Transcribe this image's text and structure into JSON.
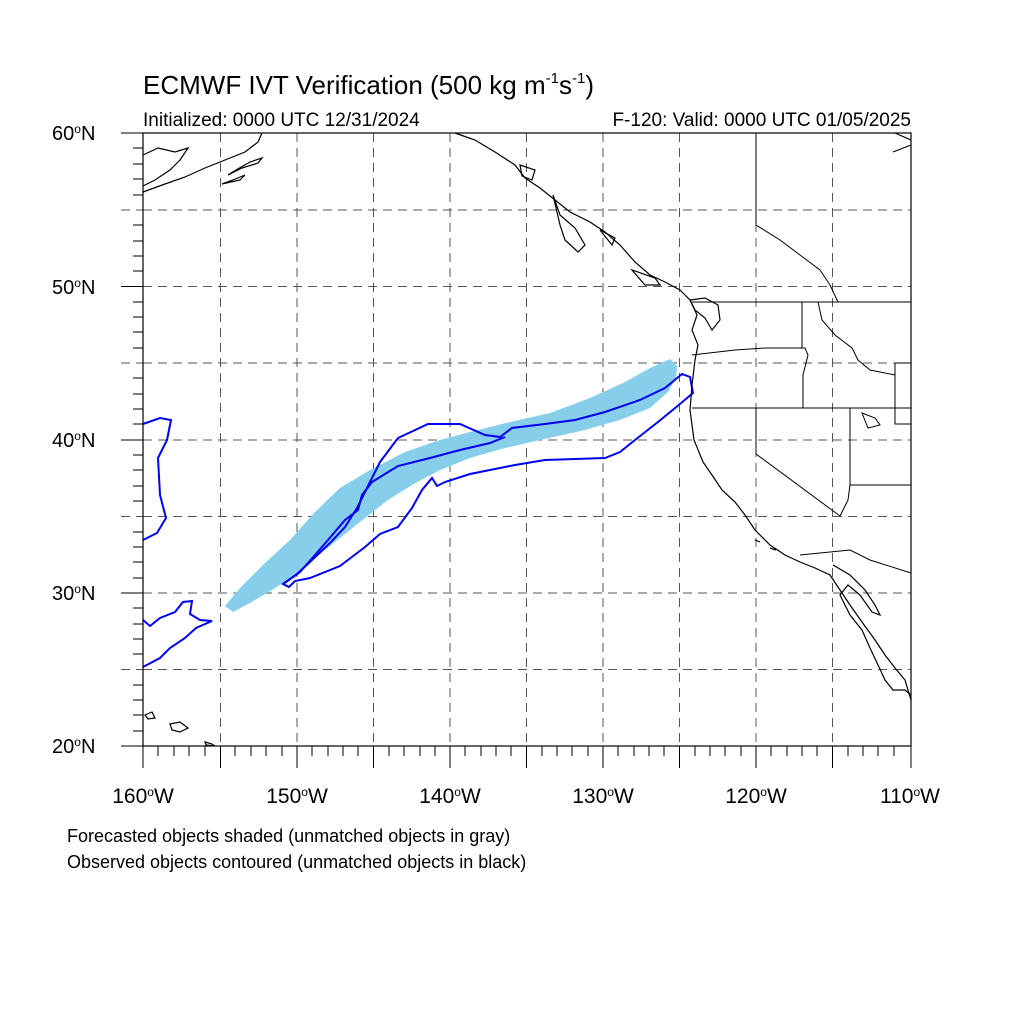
{
  "title": {
    "main": "ECMWF IVT Verification (500 kg m",
    "exp1": "-1",
    "s": "s",
    "exp2": "-1",
    "close": ")"
  },
  "subtitle_left": "Initialized: 0000 UTC 12/31/2024",
  "subtitle_right": "F-120: Valid: 0000 UTC 01/05/2025",
  "lat_labels": [
    {
      "num": "60",
      "o": "o",
      "hem": "N"
    },
    {
      "num": "50",
      "o": "o",
      "hem": "N"
    },
    {
      "num": "40",
      "o": "o",
      "hem": "N"
    },
    {
      "num": "30",
      "o": "o",
      "hem": "N"
    },
    {
      "num": "20",
      "o": "o",
      "hem": "N"
    }
  ],
  "lon_labels": [
    {
      "num": "160",
      "o": "o",
      "hem": "W"
    },
    {
      "num": "150",
      "o": "o",
      "hem": "W"
    },
    {
      "num": "140",
      "o": "o",
      "hem": "W"
    },
    {
      "num": "130",
      "o": "o",
      "hem": "W"
    },
    {
      "num": "120",
      "o": "o",
      "hem": "W"
    },
    {
      "num": "110",
      "o": "o",
      "hem": "W"
    }
  ],
  "notes": {
    "line1": "Forecasted objects shaded (unmatched objects in gray)",
    "line2": "Observed objects contoured (unmatched objects in black)"
  },
  "colors": {
    "forecast_fill": "#87ceeb",
    "observed_contour": "#0000ee",
    "coastline": "#000000",
    "grid": "#555555"
  },
  "map": {
    "lon_range": [
      -160,
      -110
    ],
    "lat_range": [
      20,
      60
    ],
    "grid_lon_step": 5,
    "grid_lat_step": 5
  }
}
